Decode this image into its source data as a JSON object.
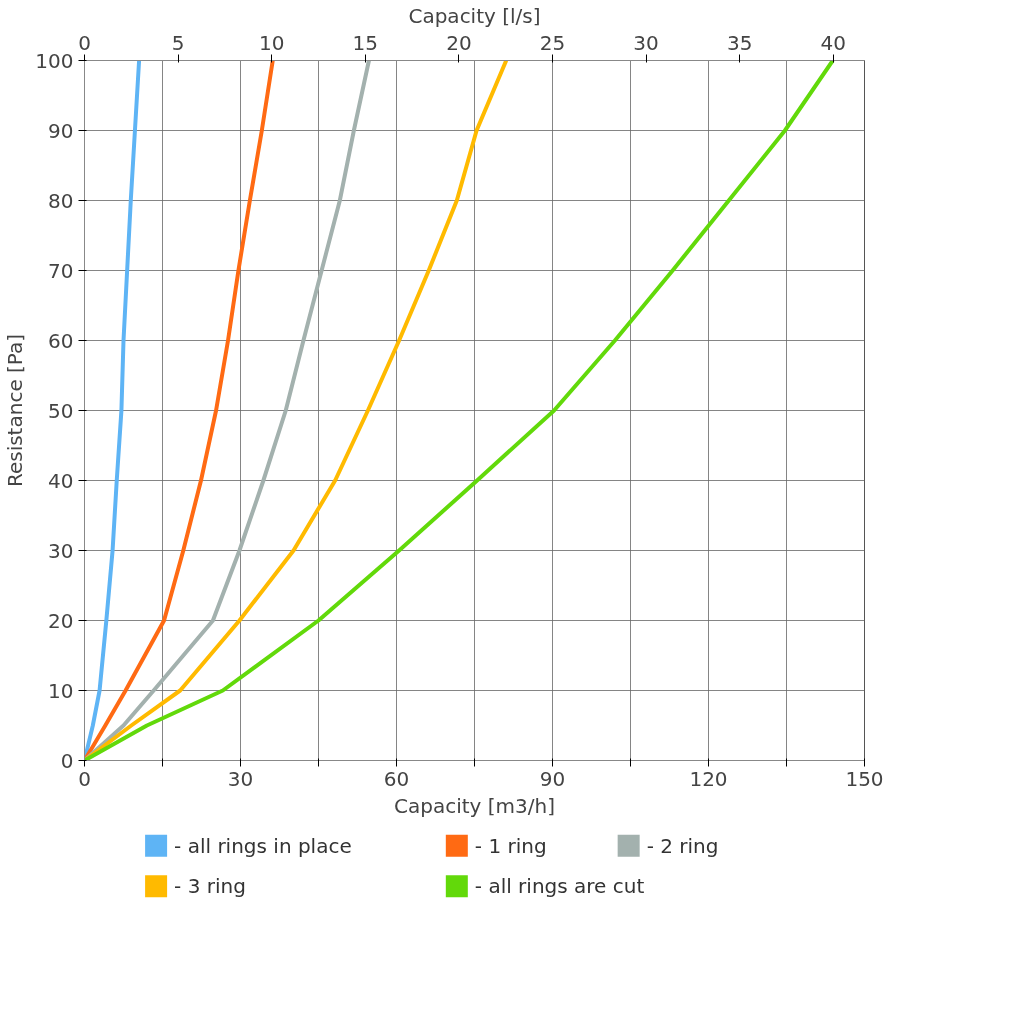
{
  "chart_data": {
    "type": "line",
    "xlabel": "Capacity [m3/h]",
    "ylabel": "Resistance [Pa]",
    "x2label": "Capacity [l/s]",
    "xlim": [
      0,
      150
    ],
    "xticks": [
      0,
      {
        "value": 15,
        "label": null
      },
      30,
      {
        "value": 45,
        "label": null
      },
      60,
      {
        "value": 75,
        "label": null
      },
      90,
      {
        "value": 105,
        "label": null
      },
      120,
      {
        "value": 135,
        "label": null
      },
      150
    ],
    "x2lim": [
      0,
      41.667
    ],
    "x2ticks": [
      0,
      5,
      10,
      15,
      20,
      25,
      30,
      35,
      40
    ],
    "ylim": [
      0,
      100
    ],
    "yticks": [
      0,
      10,
      20,
      30,
      40,
      50,
      60,
      70,
      80,
      90,
      100
    ],
    "grid": true,
    "legend": "bottom",
    "marker": "none",
    "line_style": "solid",
    "series": [
      {
        "name": "- all rings in place",
        "color": "#5eb4f5",
        "x": [
          0,
          1.6,
          2.9,
          4.2,
          5.4,
          6.2,
          7.1,
          7.5,
          8.2,
          8.9,
          9.7,
          10.5
        ],
        "values": [
          0,
          5,
          10,
          20,
          30,
          40,
          50,
          60,
          70,
          80,
          90,
          100
        ]
      },
      {
        "name": "- 1 ring",
        "color": "#ff6a13",
        "x": [
          0,
          4,
          7.9,
          15.3,
          19.0,
          22.4,
          25.3,
          27.6,
          29.6,
          31.8,
          34.1,
          36.2
        ],
        "values": [
          0,
          5,
          10,
          20,
          30,
          40,
          50,
          60,
          70,
          80,
          90,
          100
        ]
      },
      {
        "name": "- 2 ring",
        "color": "#a3b1ae",
        "x": [
          0,
          7.5,
          13.3,
          24.7,
          29.8,
          34.4,
          38.7,
          42.1,
          45.6,
          49.1,
          51.8,
          54.7
        ],
        "values": [
          0,
          5,
          10,
          20,
          30,
          40,
          50,
          60,
          70,
          80,
          90,
          100
        ]
      },
      {
        "name": "- 3 ring",
        "color": "#ffba00",
        "x": [
          0,
          9,
          18.4,
          29.8,
          40.2,
          48.2,
          54.5,
          60.5,
          66.2,
          71.6,
          75.4,
          81.1
        ],
        "values": [
          0,
          5,
          10,
          20,
          30,
          40,
          50,
          60,
          70,
          80,
          90,
          100
        ]
      },
      {
        "name": "- all rings are cut",
        "color": "#62d90a",
        "x": [
          0,
          12,
          26.6,
          45.0,
          60.5,
          75.5,
          90.3,
          102.0,
          113.1,
          123.9,
          134.7,
          143.9
        ],
        "values": [
          0,
          5,
          10,
          20,
          30,
          40,
          50,
          60,
          70,
          80,
          90,
          100
        ]
      }
    ]
  }
}
